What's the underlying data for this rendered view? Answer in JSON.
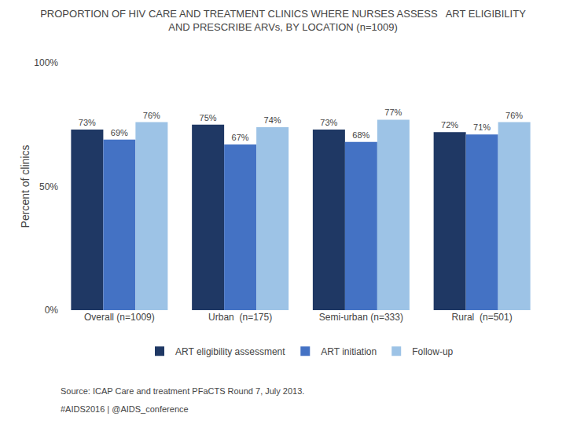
{
  "chart_data": {
    "type": "bar",
    "title": "PROPORTION OF HIV CARE AND TREATMENT CLINICS WHERE NURSES ASSESS   ART ELIGIBILITY",
    "subtitle": "AND PRESCRIBE ARVs, BY LOCATION (n=1009)",
    "categories": [
      "Overall (n=1009)",
      "Urban  (n=175)",
      "Semi-urban (n=333)",
      "Rural  (n=501)"
    ],
    "series": [
      {
        "name": "ART eligibility assessment",
        "color": "#1F3864",
        "values": [
          73,
          75,
          73,
          72
        ],
        "value_labels": [
          "73%",
          "75%",
          "73%",
          "72%"
        ]
      },
      {
        "name": "ART initiation",
        "color": "#4472C4",
        "values": [
          69,
          67,
          68,
          71
        ],
        "value_labels": [
          "69%",
          "67%",
          "68%",
          "71%"
        ]
      },
      {
        "name": "Follow-up",
        "color": "#9DC3E6",
        "values": [
          76,
          74,
          77,
          76
        ],
        "value_labels": [
          "76%",
          "74%",
          "77%",
          "76%"
        ]
      }
    ],
    "ylabel": "Percent of clinics",
    "ylim": [
      0,
      100
    ],
    "yticks": [
      {
        "value": 0,
        "label": "0%"
      },
      {
        "value": 50,
        "label": "50%"
      },
      {
        "value": 100,
        "label": "100%"
      }
    ],
    "grid": false,
    "legend": "bottom",
    "data_labels": true,
    "annotations": [
      "Source: ICAP Care and treatment PFaCTS Round 7, July 2013.",
      "#AIDS2016 | @AIDS_conference"
    ]
  }
}
